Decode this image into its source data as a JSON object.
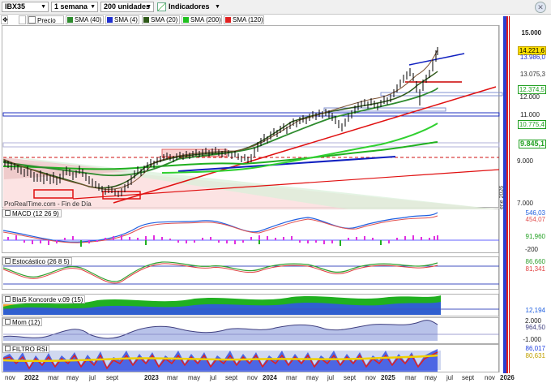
{
  "toolbar": {
    "symbol": "IBX35",
    "period": "1 semana",
    "units": "200 unidades",
    "indicators_label": "Indicadores"
  },
  "legend": [
    {
      "label": "Precio",
      "color": "#ffffff"
    },
    {
      "label": "SMA (40)",
      "color": "#2e8b2e"
    },
    {
      "label": "SMA (4)",
      "color": "#1f2fd0"
    },
    {
      "label": "SMA (20)",
      "color": "#2f5a1a"
    },
    {
      "label": "SMA (200)",
      "color": "#20c020"
    },
    {
      "label": "SMA (120)",
      "color": "#e02020"
    }
  ],
  "price_axis": {
    "ticks": [
      "15.000",
      "12.000",
      "11.000",
      "9.000",
      "7.000"
    ],
    "tags": [
      {
        "text": "14.221,6",
        "bg": "#ffe000",
        "fg": "#000000"
      },
      {
        "text": "13.986,0",
        "bg": "#ffffff",
        "fg": "#1f2fd0"
      },
      {
        "text": "13.075,3",
        "bg": "#ffffff",
        "fg": "#333333"
      },
      {
        "text": "12.374,5",
        "bg": "#ffffff",
        "fg": "#20a020"
      },
      {
        "text": "10.775,4",
        "bg": "#ffffff",
        "fg": "#20a020"
      },
      {
        "text": "9.845,1",
        "bg": "#ffffff",
        "fg": "#20a020"
      }
    ],
    "credit": "ProRealTime.com - Fin de Día"
  },
  "panels": {
    "macd": {
      "label": "MACD (12 26 9)",
      "values": [
        "546,03",
        "454,07",
        "91,960",
        "-200"
      ]
    },
    "stoch": {
      "label": "Estocástico (26 8 5)",
      "values": [
        "86,660",
        "81,341"
      ]
    },
    "blai5": {
      "label": "Blai5 Koncorde v.09 (15)",
      "values": [
        "12,194"
      ]
    },
    "mom": {
      "label": "Mom (12)",
      "values": [
        "2.000",
        "964,50",
        "-1.000"
      ]
    },
    "rsi": {
      "label": "FILTRO RSI",
      "values": [
        "86,017",
        "80,631"
      ]
    }
  },
  "x_axis": {
    "labels": [
      {
        "text": "nov",
        "bold": false
      },
      {
        "text": "2022",
        "bold": true
      },
      {
        "text": "mar",
        "bold": false
      },
      {
        "text": "may",
        "bold": false
      },
      {
        "text": "jul",
        "bold": false
      },
      {
        "text": "sept",
        "bold": false
      },
      {
        "text": "2023",
        "bold": true
      },
      {
        "text": "mar",
        "bold": false
      },
      {
        "text": "may",
        "bold": false
      },
      {
        "text": "jul",
        "bold": false
      },
      {
        "text": "sept",
        "bold": false
      },
      {
        "text": "nov",
        "bold": false
      },
      {
        "text": "2024",
        "bold": true
      },
      {
        "text": "mar",
        "bold": false
      },
      {
        "text": "may",
        "bold": false
      },
      {
        "text": "jul",
        "bold": false
      },
      {
        "text": "sept",
        "bold": false
      },
      {
        "text": "nov",
        "bold": false
      },
      {
        "text": "2025",
        "bold": true
      },
      {
        "text": "mar",
        "bold": false
      },
      {
        "text": "may",
        "bold": false
      },
      {
        "text": "jul",
        "bold": false
      },
      {
        "text": "sept",
        "bold": false
      },
      {
        "text": "nov",
        "bold": false
      },
      {
        "text": "2026",
        "bold": true
      }
    ]
  },
  "vertical_labels": [
    "ene 2026"
  ]
}
